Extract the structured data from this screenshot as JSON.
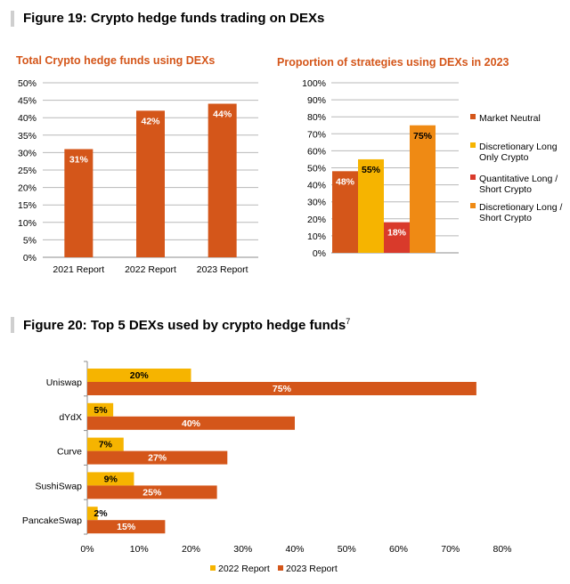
{
  "figure19": {
    "title": "Figure 19: Crypto hedge funds trading on DEXs"
  },
  "figure20": {
    "title": "Figure 20: Top 5 DEXs used by crypto hedge funds",
    "footnote": "7"
  },
  "colors": {
    "orange_dark": "#d4561a",
    "yellow": "#f6b400",
    "red": "#d93a2b",
    "orange": "#ef8a14",
    "title_orange": "#d4561a"
  },
  "chart_data": [
    {
      "type": "bar",
      "title": "Total Crypto hedge funds using DEXs",
      "categories": [
        "2021 Report",
        "2022 Report",
        "2023 Report"
      ],
      "values": [
        31,
        42,
        44
      ],
      "data_labels": [
        "31%",
        "42%",
        "44%"
      ],
      "ylim": [
        0,
        50
      ],
      "yticks": [
        "0%",
        "5%",
        "10%",
        "15%",
        "20%",
        "25%",
        "30%",
        "35%",
        "40%",
        "45%",
        "50%"
      ],
      "grid": true,
      "xlabel": "",
      "ylabel": ""
    },
    {
      "type": "bar",
      "title": "Proportion of strategies using DEXs in 2023",
      "series": [
        {
          "name": "Market Neutral",
          "values": [
            48
          ],
          "label": "48%"
        },
        {
          "name": "Discretionary Long Only Crypto",
          "values": [
            55
          ],
          "label": "55%"
        },
        {
          "name": "Quantitative Long / Short Crypto",
          "values": [
            18
          ],
          "label": "18%"
        },
        {
          "name": "Discretionary Long / Short Crypto",
          "values": [
            75
          ],
          "label": "75%"
        }
      ],
      "legend_lines": [
        [
          "Market Neutral"
        ],
        [
          "Discretionary Long",
          "Only Crypto"
        ],
        [
          "Quantitative Long /",
          "Short Crypto"
        ],
        [
          "Discretionary Long /",
          "Short Crypto"
        ]
      ],
      "ylim": [
        0,
        100
      ],
      "yticks": [
        "0%",
        "10%",
        "20%",
        "30%",
        "40%",
        "50%",
        "60%",
        "70%",
        "80%",
        "90%",
        "100%"
      ],
      "grid": true,
      "legend": "right",
      "xlabel": "",
      "ylabel": ""
    },
    {
      "type": "bar",
      "orientation": "horizontal",
      "categories": [
        "Uniswap",
        "dYdX",
        "Curve",
        "SushiSwap",
        "PancakeSwap"
      ],
      "series": [
        {
          "name": "2022 Report",
          "values": [
            20,
            5,
            7,
            9,
            2
          ],
          "labels": [
            "20%",
            "5%",
            "7%",
            "9%",
            "2%"
          ]
        },
        {
          "name": "2023 Report",
          "values": [
            75,
            40,
            27,
            25,
            15
          ],
          "labels": [
            "75%",
            "40%",
            "27%",
            "25%",
            "15%"
          ]
        }
      ],
      "xlim": [
        0,
        80
      ],
      "xticks": [
        "0%",
        "10%",
        "20%",
        "30%",
        "40%",
        "50%",
        "60%",
        "70%",
        "80%"
      ],
      "grid": false,
      "legend": "bottom",
      "xlabel": "",
      "ylabel": ""
    }
  ]
}
